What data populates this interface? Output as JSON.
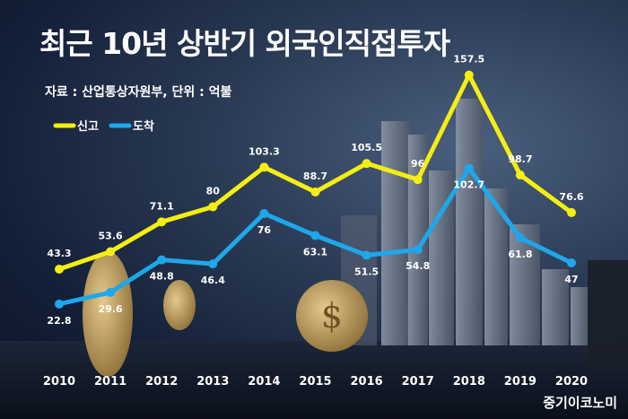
{
  "header": {
    "title": "최근 10년 상반기 외국인직접투자",
    "source": "자료 : 산업통상자원부, 단위 : 억불"
  },
  "brand": "중기이코노미",
  "colors": {
    "declared": "#f5ee12",
    "arrived": "#1ea7ea"
  },
  "chart_data": {
    "type": "line",
    "title": "최근 10년 상반기 외국인직접투자",
    "ylabel": "억불",
    "x": [
      "2010",
      "2011",
      "2012",
      "2013",
      "2014",
      "2015",
      "2016",
      "2017",
      "2018",
      "2019",
      "2020"
    ],
    "ylim": [
      0,
      170
    ],
    "legend_position": "top-left",
    "series": [
      {
        "name": "신고",
        "values": [
          43.3,
          53.6,
          71.1,
          80,
          103.3,
          88.7,
          105.5,
          96,
          157.5,
          98.7,
          76.6
        ]
      },
      {
        "name": "도착",
        "values": [
          22.8,
          29.6,
          48.8,
          46.4,
          76,
          63.1,
          51.5,
          54.8,
          102.7,
          61.8,
          47
        ]
      }
    ]
  }
}
